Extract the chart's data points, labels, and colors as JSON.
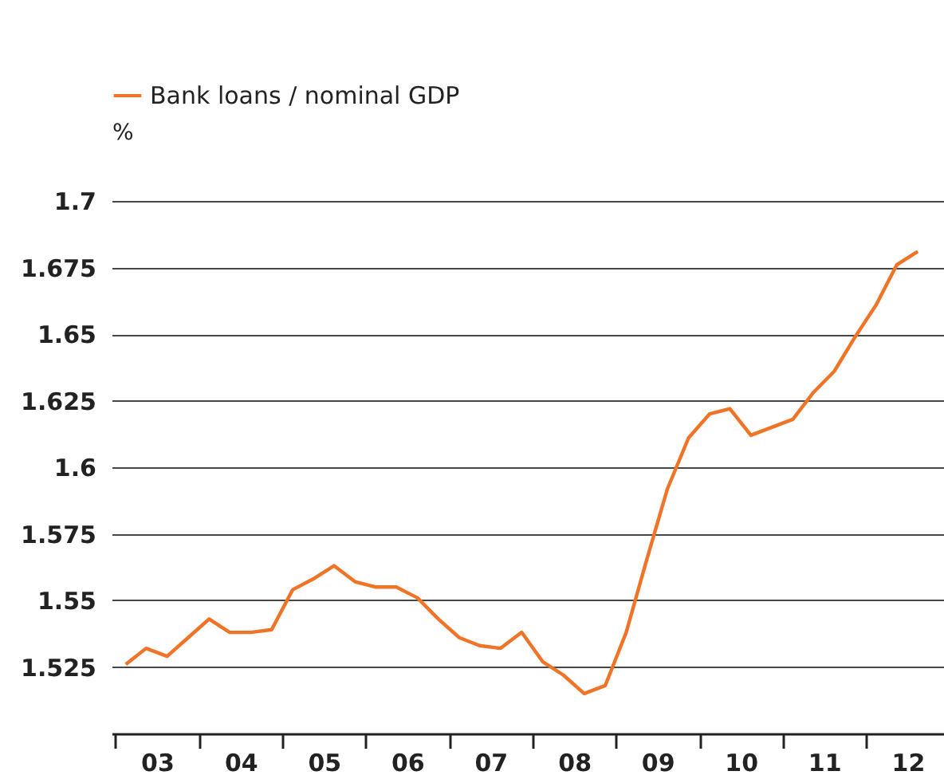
{
  "chart_data": {
    "type": "line",
    "ylabel": "%",
    "legend": "top left",
    "grid": "y",
    "line_style": "solid",
    "marker": "none",
    "x": [
      "2003-02-15",
      "2003-05-15",
      "2003-08-15",
      "2003-11-15",
      "2004-02-15",
      "2004-05-15",
      "2004-08-15",
      "2004-11-15",
      "2005-02-15",
      "2005-05-15",
      "2005-08-15",
      "2005-11-15",
      "2006-02-15",
      "2006-05-15",
      "2006-08-15",
      "2006-11-15",
      "2007-02-15",
      "2007-05-15",
      "2007-08-15",
      "2007-11-15",
      "2008-02-15",
      "2008-05-15",
      "2008-08-15",
      "2008-11-15",
      "2009-02-15",
      "2009-05-15",
      "2009-08-15",
      "2009-11-15",
      "2010-02-15",
      "2010-05-15",
      "2010-08-15",
      "2010-11-15",
      "2011-02-15",
      "2011-05-15",
      "2011-08-15",
      "2011-11-15",
      "2012-02-15",
      "2012-05-15",
      "2012-08-15"
    ],
    "series": [
      {
        "name": "Bank loans / nominal GDP",
        "color": "#f07428",
        "values": [
          1.526,
          1.532,
          1.529,
          1.536,
          1.543,
          1.538,
          1.538,
          1.539,
          1.554,
          1.558,
          1.563,
          1.557,
          1.555,
          1.555,
          1.551,
          1.543,
          1.536,
          1.533,
          1.532,
          1.538,
          1.527,
          1.522,
          1.515,
          1.518,
          1.538,
          1.565,
          1.592,
          1.611,
          1.62,
          1.622,
          1.612,
          1.615,
          1.618,
          1.628,
          1.636,
          1.649,
          1.661,
          1.676,
          1.681
        ]
      }
    ],
    "xlim": [
      "2002-12-15",
      "2012-12-08"
    ],
    "xticks": [
      {
        "value": "2003-01-01",
        "label": null
      },
      {
        "value": "2003-07-02",
        "label": "03"
      },
      {
        "value": "2004-01-01",
        "label": null
      },
      {
        "value": "2004-07-02",
        "label": "04"
      },
      {
        "value": "2005-01-01",
        "label": null
      },
      {
        "value": "2005-07-02",
        "label": "05"
      },
      {
        "value": "2006-01-01",
        "label": null
      },
      {
        "value": "2006-07-02",
        "label": "06"
      },
      {
        "value": "2007-01-01",
        "label": null
      },
      {
        "value": "2007-07-02",
        "label": "07"
      },
      {
        "value": "2008-01-01",
        "label": null
      },
      {
        "value": "2008-07-02",
        "label": "08"
      },
      {
        "value": "2009-01-01",
        "label": null
      },
      {
        "value": "2009-07-02",
        "label": "09"
      },
      {
        "value": "2010-01-01",
        "label": null
      },
      {
        "value": "2010-07-02",
        "label": "10"
      },
      {
        "value": "2011-01-01",
        "label": null
      },
      {
        "value": "2011-07-02",
        "label": "11"
      },
      {
        "value": "2012-01-01",
        "label": null
      },
      {
        "value": "2012-07-02",
        "label": "12"
      }
    ],
    "ylim": [
      1.5,
      1.7
    ],
    "yticks": [
      1.525,
      1.55,
      1.575,
      1.6,
      1.625,
      1.65,
      1.675,
      1.7
    ]
  }
}
